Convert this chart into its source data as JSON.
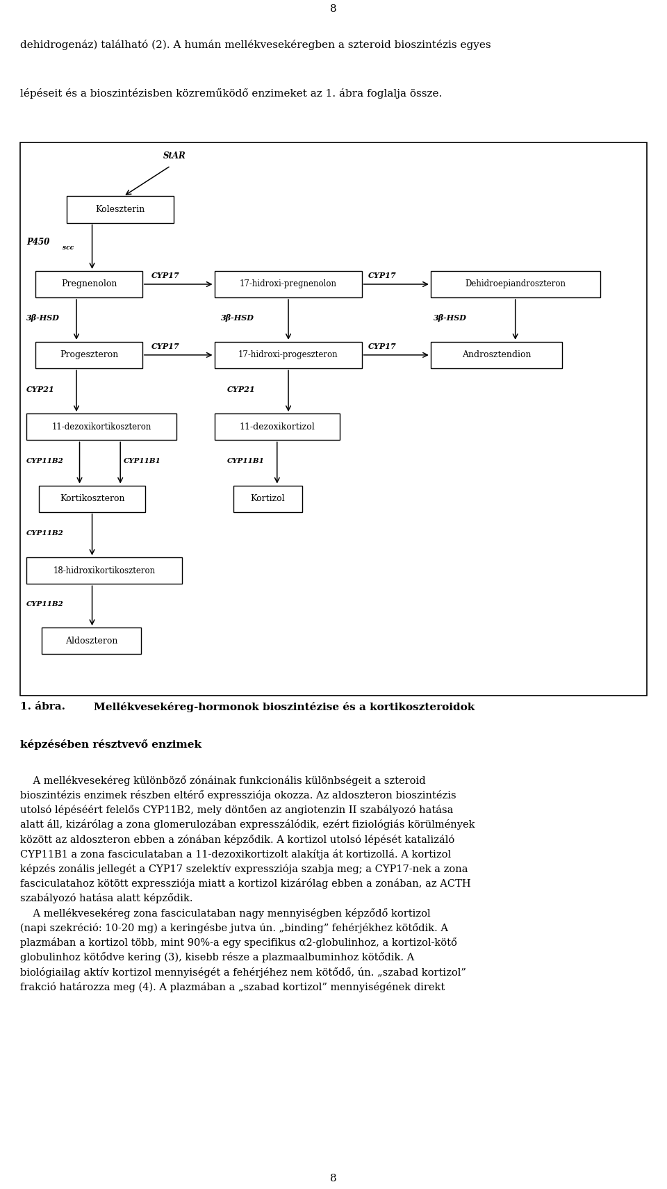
{
  "page_number_top": "8",
  "page_number_bottom": "8",
  "intro_text_line1": "dehidrogenaz) talalhato (2). A human mellekvesekoregben a szteroid bioszintezis egyes",
  "intro_text_line2": "lepeseit es a bioszintezisben kozremukodo enzimeket az 1. abra foglalja ossze.",
  "figure_caption_bold1": "1. abra.",
  "figure_caption_bold2": "Mellekvesekoreg-hormonok bioszintezise es a kortikoszteroidok",
  "figure_caption_bold3": "kepzeseben resztvevo enzimek",
  "background_color": "#ffffff",
  "box_edge_color": "#000000",
  "text_color": "#000000"
}
